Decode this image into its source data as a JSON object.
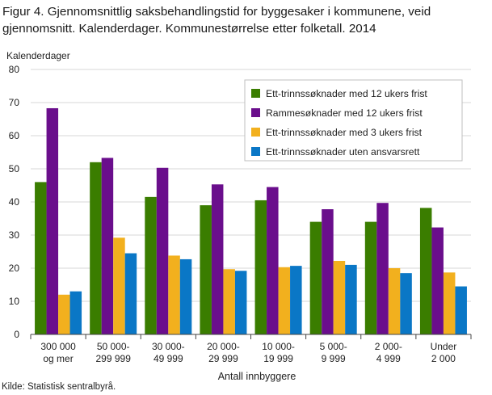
{
  "title": "Figur 4. Gjennomsnittlig saksbehandlingstid for byggesaker i kommunene, veid gjennomsnitt. Kalenderdager. Kommunestørrelse etter folketall. 2014",
  "source": "Kilde: Statistisk sentralbyrå.",
  "colors": {
    "series": [
      "#3a7d00",
      "#6a0e8c",
      "#f2b01e",
      "#0a77c6"
    ],
    "grid": "#d7d7d7",
    "axis": "#444444"
  },
  "chart_data": {
    "type": "bar",
    "ylabel": "Kalenderdager",
    "xlabel": "Antall innbyggere",
    "ylim": [
      0,
      80
    ],
    "yticks": [
      0,
      10,
      20,
      30,
      40,
      50,
      60,
      70,
      80
    ],
    "grid": true,
    "legend_position": "top-right",
    "categories": [
      [
        "300 000",
        "og mer"
      ],
      [
        "50 000-",
        "299 999"
      ],
      [
        "30 000-",
        "49 999"
      ],
      [
        "20 000-",
        "29 999"
      ],
      [
        "10 000-",
        "19 999"
      ],
      [
        "5 000-",
        "9 999"
      ],
      [
        "2 000-",
        "4 999"
      ],
      [
        "Under",
        "2 000"
      ]
    ],
    "series": [
      {
        "name": "Ett-trinnssøknader med 12 ukers frist",
        "values": [
          46,
          52,
          41.5,
          39,
          40.5,
          34,
          34,
          38.2
        ]
      },
      {
        "name": "Rammesøknader med 12 ukers frist",
        "values": [
          68.3,
          53.3,
          50.3,
          45.3,
          44.5,
          37.8,
          39.7,
          32.3
        ]
      },
      {
        "name": "Ett-trinnssøknader med 3 ukers frist",
        "values": [
          12,
          29.2,
          23.8,
          19.7,
          20.3,
          22.2,
          20,
          18.7
        ]
      },
      {
        "name": "Ett-trinnssøknader uten ansvarsrett",
        "values": [
          13,
          24.5,
          22.7,
          19.2,
          20.7,
          21,
          18.5,
          14.5
        ]
      }
    ]
  }
}
